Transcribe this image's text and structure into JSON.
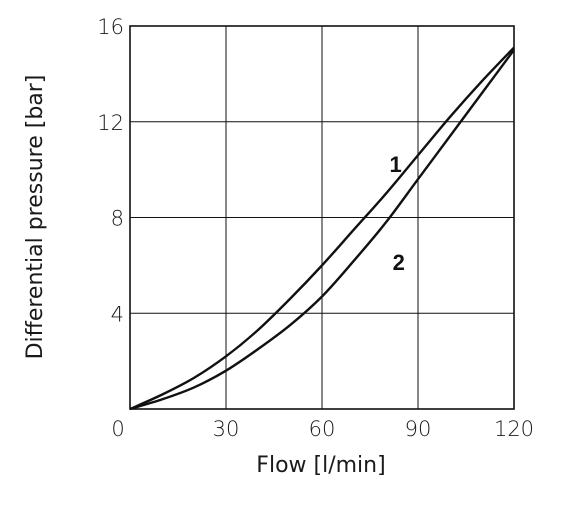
{
  "chart_data": {
    "type": "line",
    "xlabel": "Flow [l/min]",
    "ylabel": "Differential pressure [bar]",
    "xlim": [
      0,
      120
    ],
    "ylim": [
      0,
      16
    ],
    "x_ticks": [
      "0",
      "30",
      "60",
      "90",
      "120"
    ],
    "y_ticks": [
      "4",
      "8",
      "12",
      "16"
    ],
    "grid": true,
    "series": [
      {
        "name": "1",
        "color": "#111111",
        "points": [
          [
            0,
            0
          ],
          [
            10,
            0.6
          ],
          [
            20,
            1.3
          ],
          [
            30,
            2.2
          ],
          [
            40,
            3.3
          ],
          [
            50,
            4.6
          ],
          [
            60,
            6.0
          ],
          [
            70,
            7.5
          ],
          [
            80,
            9.0
          ],
          [
            90,
            10.6
          ],
          [
            100,
            12.2
          ],
          [
            110,
            13.7
          ],
          [
            120,
            15.1
          ]
        ]
      },
      {
        "name": "2",
        "color": "#111111",
        "points": [
          [
            0,
            0
          ],
          [
            10,
            0.4
          ],
          [
            20,
            0.9
          ],
          [
            30,
            1.6
          ],
          [
            40,
            2.5
          ],
          [
            50,
            3.5
          ],
          [
            60,
            4.7
          ],
          [
            70,
            6.2
          ],
          [
            80,
            7.8
          ],
          [
            90,
            9.6
          ],
          [
            100,
            11.4
          ],
          [
            110,
            13.2
          ],
          [
            120,
            15.0
          ]
        ]
      }
    ]
  }
}
